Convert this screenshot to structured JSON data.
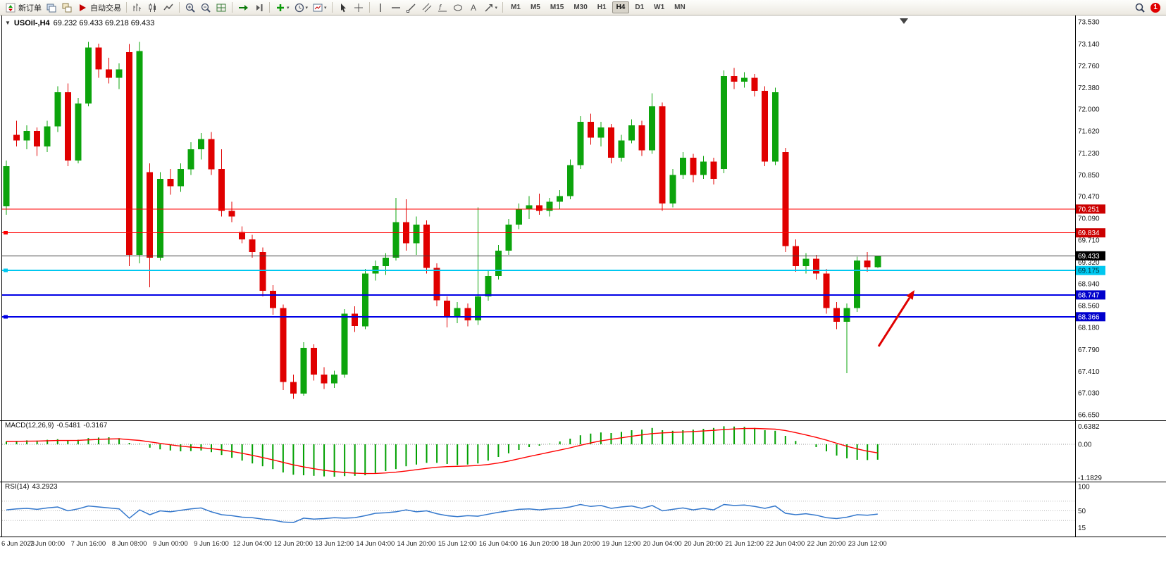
{
  "toolbar": {
    "timeframes": [
      "M1",
      "M5",
      "M15",
      "M30",
      "H1",
      "H4",
      "D1",
      "W1",
      "MN"
    ],
    "active_timeframe": "H4",
    "notification_count": "1",
    "items": [
      {
        "type": "button",
        "name": "new-order-button",
        "icon": "new-order",
        "label": "新订单"
      },
      {
        "type": "icon",
        "name": "charts-window-icon",
        "icon": "windows"
      },
      {
        "type": "icon",
        "name": "profiles-icon",
        "icon": "cascade"
      },
      {
        "type": "button",
        "name": "auto-trading-button",
        "icon": "play",
        "label": "自动交易"
      },
      {
        "type": "sep"
      },
      {
        "type": "icon",
        "name": "bar-chart-icon",
        "icon": "bars"
      },
      {
        "type": "icon",
        "name": "candlestick-chart-icon",
        "icon": "candles"
      },
      {
        "type": "icon",
        "name": "line-chart-icon",
        "icon": "line"
      },
      {
        "type": "sep"
      },
      {
        "type": "icon",
        "name": "zoom-in-icon",
        "icon": "zoomin"
      },
      {
        "type": "icon",
        "name": "zoom-out-icon",
        "icon": "zoomout"
      },
      {
        "type": "icon",
        "name": "grid-icon",
        "icon": "grid"
      },
      {
        "type": "sep"
      },
      {
        "type": "icon",
        "name": "auto-scroll-icon",
        "icon": "scroll"
      },
      {
        "type": "icon",
        "name": "chart-shift-icon",
        "icon": "shift"
      },
      {
        "type": "sep"
      },
      {
        "type": "dropdown",
        "name": "indicators-dropdown",
        "icon": "plus"
      },
      {
        "type": "dropdown",
        "name": "periods-dropdown",
        "icon": "clock"
      },
      {
        "type": "dropdown",
        "name": "templates-dropdown",
        "icon": "chart"
      },
      {
        "type": "sep"
      },
      {
        "type": "icon",
        "name": "cursor-icon",
        "icon": "cursor"
      },
      {
        "type": "icon",
        "name": "crosshair-icon",
        "icon": "cross"
      },
      {
        "type": "sep"
      },
      {
        "type": "icon",
        "name": "vertical-line-icon",
        "icon": "vline"
      },
      {
        "type": "icon",
        "name": "horizontal-line-icon",
        "icon": "hline"
      },
      {
        "type": "icon",
        "name": "trendline-icon",
        "icon": "trend"
      },
      {
        "type": "icon",
        "name": "channel-icon",
        "icon": "channel"
      },
      {
        "type": "icon",
        "name": "fibonacci-icon",
        "icon": "fibo"
      },
      {
        "type": "icon",
        "name": "shapes-icon",
        "icon": "shapes"
      },
      {
        "type": "icon",
        "name": "text-tool-icon",
        "icon": "text"
      },
      {
        "type": "dropdown",
        "name": "arrows-dropdown",
        "icon": "arrow"
      },
      {
        "type": "sep"
      },
      {
        "type": "timeframes"
      },
      {
        "type": "spacer"
      },
      {
        "type": "icon",
        "name": "search-icon",
        "icon": "search"
      },
      {
        "type": "badge",
        "name": "notification-badge",
        "label": "1"
      }
    ]
  },
  "chart": {
    "expander": "▼",
    "title_symbol": "USOil-,H4",
    "title_ohlc": "69.232 69.433 69.218 69.433"
  },
  "chart_data": {
    "type": "candlestick",
    "symbol": "USOil-,H4",
    "timeframe": "H4",
    "colors": {
      "bull": "#0ca40c",
      "bear": "#e00000",
      "macd_hist": "#00a000",
      "macd_signal": "#ff0000",
      "rsi_line": "#3377cc"
    },
    "price_axis": {
      "min": 66.65,
      "max": 73.53,
      "labels": [
        "73.530",
        "73.140",
        "72.760",
        "72.380",
        "72.000",
        "71.620",
        "71.230",
        "70.850",
        "70.470",
        "70.090",
        "69.710",
        "69.320",
        "68.940",
        "68.560",
        "68.180",
        "67.790",
        "67.410",
        "67.030",
        "66.650"
      ]
    },
    "hlines": [
      {
        "price": 70.251,
        "color": "#ff0000",
        "width": 1,
        "tag": "70.251",
        "tag_bg": "#cc0000",
        "tag_fg": "#ffffff",
        "marker": false
      },
      {
        "price": 69.834,
        "color": "#ff0000",
        "width": 1,
        "tag": "69.834",
        "tag_bg": "#cc0000",
        "tag_fg": "#ffffff",
        "marker": true
      },
      {
        "price": 69.433,
        "color": "#3c3c3c",
        "width": 1,
        "tag": "69.433",
        "tag_bg": "#000000",
        "tag_fg": "#ffffff",
        "marker": false
      },
      {
        "price": 69.175,
        "color": "#00c8f0",
        "width": 2,
        "tag": "69.175",
        "tag_bg": "#00c8f0",
        "tag_fg": "#00333d",
        "marker": true
      },
      {
        "price": 68.747,
        "color": "#0000e6",
        "width": 2,
        "tag": "68.747",
        "tag_bg": "#0000cc",
        "tag_fg": "#ffffff",
        "marker": false
      },
      {
        "price": 68.366,
        "color": "#0000e6",
        "width": 2,
        "tag": "68.366",
        "tag_bg": "#0000cc",
        "tag_fg": "#ffffff",
        "marker": true
      }
    ],
    "time_labels": [
      "6 Jun 2023",
      "7 Jun 00:00",
      "7 Jun 16:00",
      "8 Jun 08:00",
      "9 Jun 00:00",
      "9 Jun 16:00",
      "12 Jun 04:00",
      "12 Jun 20:00",
      "13 Jun 12:00",
      "14 Jun 04:00",
      "14 Jun 20:00",
      "15 Jun 12:00",
      "16 Jun 04:00",
      "16 Jun 20:00",
      "18 Jun 20:00",
      "19 Jun 12:00",
      "20 Jun 04:00",
      "20 Jun 20:00",
      "21 Jun 12:00",
      "22 Jun 04:00",
      "22 Jun 20:00",
      "23 Jun 12:00"
    ],
    "label_every_n_bars": 4,
    "candles": [
      [
        70.3,
        71.1,
        70.15,
        71.0
      ],
      [
        71.55,
        71.8,
        71.35,
        71.45
      ],
      [
        71.45,
        71.72,
        71.3,
        71.62
      ],
      [
        71.62,
        71.68,
        71.18,
        71.35
      ],
      [
        71.35,
        71.8,
        71.25,
        71.7
      ],
      [
        71.7,
        72.4,
        71.6,
        72.3
      ],
      [
        72.3,
        72.45,
        71.0,
        71.1
      ],
      [
        71.1,
        72.2,
        71.05,
        72.1
      ],
      [
        72.1,
        73.18,
        72.05,
        73.08
      ],
      [
        73.08,
        73.15,
        72.55,
        72.7
      ],
      [
        72.7,
        72.9,
        72.45,
        72.55
      ],
      [
        72.55,
        72.8,
        72.35,
        72.7
      ],
      [
        73.0,
        73.14,
        69.25,
        69.45
      ],
      [
        69.45,
        73.18,
        69.3,
        73.02
      ],
      [
        70.9,
        71.05,
        68.88,
        69.4
      ],
      [
        69.4,
        70.9,
        69.35,
        70.78
      ],
      [
        70.78,
        70.95,
        70.5,
        70.65
      ],
      [
        70.65,
        71.05,
        70.55,
        70.95
      ],
      [
        70.95,
        71.42,
        70.85,
        71.3
      ],
      [
        71.3,
        71.58,
        71.12,
        71.48
      ],
      [
        71.48,
        71.6,
        70.85,
        70.95
      ],
      [
        70.95,
        71.3,
        70.12,
        70.22
      ],
      [
        70.22,
        70.38,
        70.02,
        70.12
      ],
      [
        69.85,
        69.95,
        69.65,
        69.72
      ],
      [
        69.72,
        69.8,
        69.4,
        69.5
      ],
      [
        69.5,
        69.58,
        68.72,
        68.82
      ],
      [
        68.82,
        68.92,
        68.4,
        68.52
      ],
      [
        68.52,
        68.58,
        67.08,
        67.22
      ],
      [
        67.22,
        67.35,
        66.93,
        67.02
      ],
      [
        67.02,
        67.92,
        66.98,
        67.82
      ],
      [
        67.82,
        67.88,
        67.25,
        67.35
      ],
      [
        67.35,
        67.48,
        67.1,
        67.2
      ],
      [
        67.2,
        67.42,
        67.12,
        67.35
      ],
      [
        67.35,
        68.5,
        67.3,
        68.42
      ],
      [
        68.42,
        68.55,
        68.1,
        68.2
      ],
      [
        68.2,
        69.2,
        68.15,
        69.12
      ],
      [
        69.12,
        69.35,
        69.0,
        69.25
      ],
      [
        69.25,
        69.48,
        69.1,
        69.4
      ],
      [
        69.4,
        70.45,
        69.35,
        70.02
      ],
      [
        70.02,
        70.42,
        69.52,
        69.65
      ],
      [
        69.65,
        70.12,
        69.45,
        69.98
      ],
      [
        69.98,
        70.05,
        69.12,
        69.22
      ],
      [
        69.22,
        69.3,
        68.55,
        68.65
      ],
      [
        68.65,
        68.72,
        68.18,
        68.35
      ],
      [
        68.35,
        68.62,
        68.25,
        68.52
      ],
      [
        68.52,
        68.6,
        68.2,
        68.3
      ],
      [
        68.3,
        70.28,
        68.22,
        68.72
      ],
      [
        68.72,
        69.18,
        68.65,
        69.08
      ],
      [
        69.08,
        69.62,
        69.02,
        69.52
      ],
      [
        69.52,
        70.08,
        69.45,
        69.98
      ],
      [
        69.98,
        70.35,
        69.9,
        70.25
      ],
      [
        70.25,
        70.48,
        70.08,
        70.32
      ],
      [
        70.32,
        70.52,
        70.15,
        70.22
      ],
      [
        70.22,
        70.45,
        70.12,
        70.38
      ],
      [
        70.38,
        70.58,
        70.25,
        70.48
      ],
      [
        70.48,
        71.12,
        70.42,
        71.02
      ],
      [
        71.02,
        71.88,
        70.95,
        71.78
      ],
      [
        71.78,
        71.92,
        71.38,
        71.5
      ],
      [
        71.5,
        71.78,
        71.35,
        71.68
      ],
      [
        71.68,
        71.74,
        71.05,
        71.15
      ],
      [
        71.15,
        71.55,
        71.08,
        71.45
      ],
      [
        71.45,
        71.82,
        71.4,
        71.72
      ],
      [
        71.72,
        71.8,
        71.18,
        71.28
      ],
      [
        71.28,
        72.28,
        71.22,
        72.05
      ],
      [
        72.05,
        72.12,
        70.22,
        70.35
      ],
      [
        70.35,
        70.95,
        70.28,
        70.85
      ],
      [
        70.85,
        71.25,
        70.78,
        71.15
      ],
      [
        71.15,
        71.22,
        70.72,
        70.85
      ],
      [
        70.85,
        71.18,
        70.78,
        71.08
      ],
      [
        71.08,
        71.15,
        70.68,
        70.78
      ],
      [
        70.95,
        72.68,
        70.88,
        72.58
      ],
      [
        72.58,
        72.72,
        72.35,
        72.48
      ],
      [
        72.48,
        72.65,
        72.38,
        72.55
      ],
      [
        72.55,
        72.62,
        72.22,
        72.32
      ],
      [
        72.32,
        72.4,
        71.0,
        71.08
      ],
      [
        71.08,
        72.38,
        71.02,
        72.3
      ],
      [
        71.25,
        71.32,
        69.5,
        69.6
      ],
      [
        69.6,
        69.72,
        69.15,
        69.25
      ],
      [
        69.25,
        69.48,
        69.12,
        69.38
      ],
      [
        69.38,
        69.45,
        69.02,
        69.12
      ],
      [
        69.12,
        69.2,
        68.42,
        68.52
      ],
      [
        68.52,
        68.62,
        68.15,
        68.28
      ],
      [
        68.28,
        68.6,
        67.38,
        68.52
      ],
      [
        68.52,
        69.42,
        68.45,
        69.35
      ],
      [
        69.35,
        69.5,
        69.15,
        69.23
      ],
      [
        69.232,
        69.433,
        69.218,
        69.433
      ]
    ],
    "macd": {
      "label": "MACD(12,26,9)",
      "value": "-0.5481",
      "signal": "-0.3167",
      "axis_labels": [
        "0.6382",
        "0.00",
        "-1.1829"
      ],
      "axis_values": [
        0.6382,
        0,
        -1.1829
      ],
      "histogram": [
        0.1,
        0.12,
        0.14,
        0.13,
        0.16,
        0.18,
        0.14,
        0.16,
        0.22,
        0.24,
        0.25,
        0.22,
        0.05,
        0.02,
        -0.12,
        -0.18,
        -0.22,
        -0.25,
        -0.24,
        -0.22,
        -0.28,
        -0.38,
        -0.48,
        -0.58,
        -0.68,
        -0.78,
        -0.88,
        -1.0,
        -1.08,
        -1.1,
        -1.12,
        -1.14,
        -1.15,
        -1.13,
        -1.12,
        -1.1,
        -1.02,
        -0.95,
        -0.88,
        -0.78,
        -0.72,
        -0.66,
        -0.66,
        -0.7,
        -0.74,
        -0.72,
        -0.68,
        -0.58,
        -0.45,
        -0.32,
        -0.2,
        -0.1,
        -0.05,
        0.02,
        0.1,
        0.2,
        0.32,
        0.38,
        0.42,
        0.4,
        0.44,
        0.5,
        0.52,
        0.58,
        0.5,
        0.48,
        0.5,
        0.52,
        0.55,
        0.58,
        0.64,
        0.63,
        0.62,
        0.58,
        0.5,
        0.48,
        0.3,
        0.12,
        0.0,
        -0.1,
        -0.25,
        -0.4,
        -0.5,
        -0.55,
        -0.56,
        -0.5481
      ]
    },
    "rsi": {
      "label": "RSI(14)",
      "value": "43.2923",
      "axis_labels": [
        "100",
        "50",
        "15"
      ],
      "axis_values": [
        100,
        50,
        15
      ],
      "levels": [
        70,
        50,
        30
      ],
      "values": [
        52,
        54,
        55,
        53,
        56,
        58,
        50,
        54,
        60,
        58,
        56,
        54,
        35,
        52,
        42,
        50,
        48,
        51,
        54,
        56,
        48,
        42,
        40,
        37,
        36,
        33,
        31,
        27,
        26,
        35,
        33,
        34,
        36,
        35,
        36,
        40,
        45,
        46,
        48,
        52,
        48,
        50,
        44,
        40,
        38,
        40,
        39,
        43,
        47,
        50,
        53,
        54,
        52,
        54,
        55,
        58,
        63,
        59,
        61,
        55,
        58,
        60,
        55,
        61,
        50,
        53,
        56,
        52,
        55,
        52,
        63,
        61,
        62,
        59,
        55,
        60,
        45,
        42,
        44,
        41,
        36,
        34,
        37,
        42,
        41,
        43.29
      ]
    },
    "annotations": [
      {
        "type": "arrow",
        "from": [
          1247,
          492
        ],
        "to": [
          1298,
          412
        ],
        "color": "#e00000"
      }
    ]
  }
}
